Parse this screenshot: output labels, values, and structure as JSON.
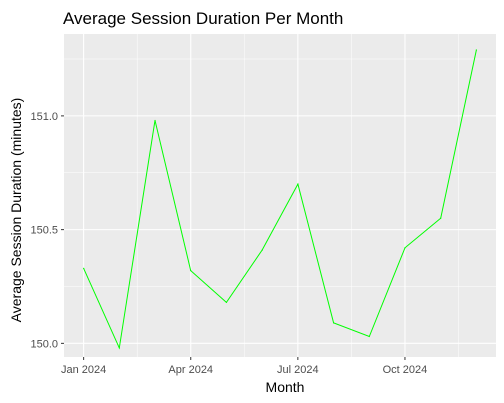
{
  "chart_data": {
    "type": "line",
    "title": "Average Session Duration Per Month",
    "xlabel": "Month",
    "ylabel": "Average Session Duration (minutes)",
    "x": [
      "2024-01",
      "2024-02",
      "2024-03",
      "2024-04",
      "2024-05",
      "2024-06",
      "2024-07",
      "2024-08",
      "2024-09",
      "2024-10",
      "2024-11",
      "2024-12"
    ],
    "series": [
      {
        "color": "#00ff00",
        "values": [
          150.33,
          149.98,
          150.98,
          150.32,
          150.18,
          150.41,
          150.7,
          150.09,
          150.03,
          150.42,
          150.55,
          151.29
        ]
      }
    ],
    "x_ticks": [
      {
        "label": "Jan 2024",
        "month": "2024-01"
      },
      {
        "label": "Apr 2024",
        "month": "2024-04"
      },
      {
        "label": "Jul 2024",
        "month": "2024-07"
      },
      {
        "label": "Oct 2024",
        "month": "2024-10"
      }
    ],
    "y_ticks": [
      150.0,
      150.5,
      151.0
    ],
    "y_tick_labels": [
      "150.0",
      "150.5",
      "151.0"
    ],
    "ylim": [
      149.94,
      151.36
    ],
    "grid": true,
    "legend": "none",
    "panel_background": "#ebebeb",
    "grid_color": "#ffffff"
  }
}
